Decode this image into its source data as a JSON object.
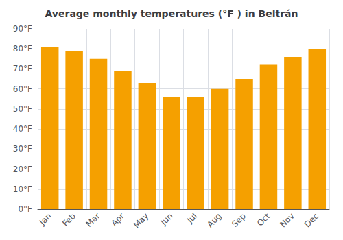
{
  "chart_data": {
    "type": "bar",
    "title": "Average monthly temperatures (°F ) in Beltrán",
    "categories": [
      "Jan",
      "Feb",
      "Mar",
      "Apr",
      "May",
      "Jun",
      "Jul",
      "Aug",
      "Sep",
      "Oct",
      "Nov",
      "Dec"
    ],
    "values": [
      81,
      79,
      75,
      69,
      63,
      56,
      56,
      60,
      65,
      72,
      76,
      80
    ],
    "color": "#F5A000",
    "ylim": [
      0,
      90
    ],
    "yticks": [
      {
        "value": 0,
        "label": "0°F"
      },
      {
        "value": 10,
        "label": "10°F"
      },
      {
        "value": 20,
        "label": "20°F"
      },
      {
        "value": 30,
        "label": "30°F"
      },
      {
        "value": 40,
        "label": "40°F"
      },
      {
        "value": 50,
        "label": "50°F"
      },
      {
        "value": 60,
        "label": "60°F"
      },
      {
        "value": 70,
        "label": "70°F"
      },
      {
        "value": 80,
        "label": "80°F"
      },
      {
        "value": 90,
        "label": "90°F"
      }
    ],
    "grid": true
  }
}
